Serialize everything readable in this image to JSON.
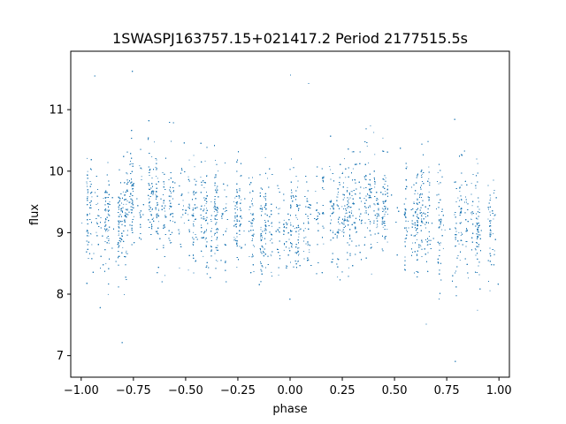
{
  "chart_data": {
    "type": "scatter",
    "title": "1SWASPJ163757.15+021417.2 Period 2177515.5s",
    "xlabel": "phase",
    "ylabel": "flux",
    "xlim": [
      -1.05,
      1.05
    ],
    "ylim": [
      6.65,
      11.95
    ],
    "grid": false,
    "x_ticks": [
      -1.0,
      -0.75,
      -0.5,
      -0.25,
      0.0,
      0.25,
      0.5,
      0.75,
      1.0
    ],
    "x_tick_labels": [
      "−1.00",
      "−0.75",
      "−0.50",
      "−0.25",
      "0.00",
      "0.25",
      "0.50",
      "0.75",
      "1.00"
    ],
    "y_ticks": [
      7,
      8,
      9,
      10,
      11
    ],
    "y_tick_labels": [
      "7",
      "8",
      "9",
      "10",
      "11"
    ],
    "marker_color": "#1f77b4",
    "series": [
      {
        "phase_range": [
          -1.0,
          1.0
        ],
        "approx_point_count": 12000,
        "typical_flux_range": [
          8.3,
          10.3
        ],
        "median_flux": 9.3,
        "min_flux": 6.9,
        "max_flux": 11.7,
        "profile_phase": [
          -1.0,
          -0.9,
          -0.8,
          -0.7,
          -0.6,
          -0.5,
          -0.4,
          -0.3,
          -0.2,
          -0.1,
          0.0,
          0.1,
          0.2,
          0.3,
          0.4,
          0.5,
          0.6,
          0.7,
          0.8,
          0.9,
          1.0
        ],
        "profile_median_flux": [
          9.4,
          9.2,
          9.3,
          9.6,
          9.5,
          9.3,
          9.2,
          9.3,
          9.1,
          9.0,
          9.0,
          9.3,
          9.2,
          9.6,
          9.5,
          9.3,
          9.2,
          9.3,
          9.1,
          9.1,
          9.1
        ]
      }
    ]
  }
}
